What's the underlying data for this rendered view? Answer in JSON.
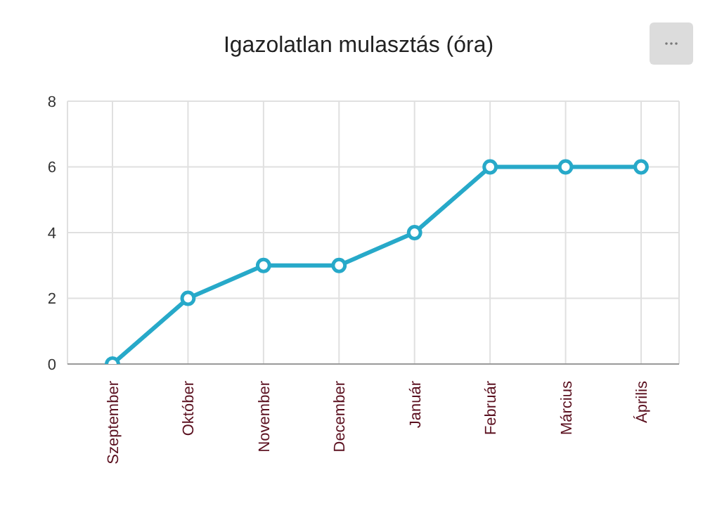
{
  "chart_data": {
    "type": "line",
    "title": "Igazolatlan mulasztás (óra)",
    "categories": [
      "Szeptember",
      "Október",
      "November",
      "December",
      "Január",
      "Február",
      "Március",
      "Április"
    ],
    "series": [
      {
        "color": "#27a9c9",
        "values": [
          0,
          2,
          3,
          3,
          4,
          6,
          6,
          6
        ]
      }
    ],
    "ylim": [
      0,
      8
    ],
    "yticks": [
      0,
      2,
      4,
      6,
      8
    ],
    "grid": true,
    "marker": "circle",
    "line_style": "solid"
  }
}
